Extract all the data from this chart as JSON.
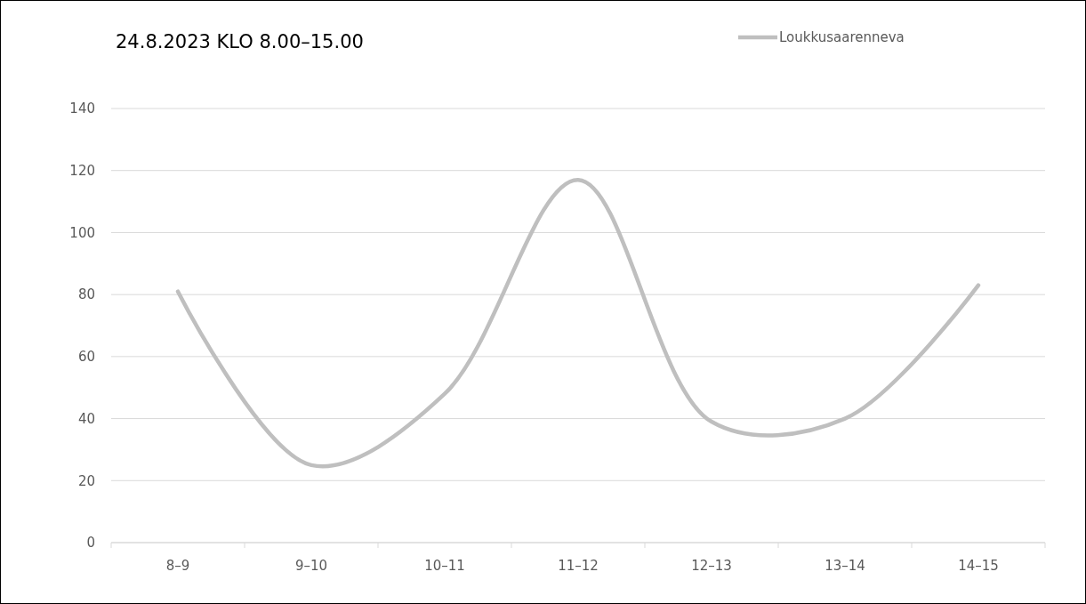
{
  "chart_data": {
    "type": "line",
    "title": "24.8.2023 KLO 8.00–15.00",
    "categories": [
      "8–9",
      "9–10",
      "10–11",
      "11–12",
      "12–13",
      "13–14",
      "14–15"
    ],
    "series": [
      {
        "name": "Loukkusaarenneva",
        "color": "#bfbfbf",
        "values": [
          81,
          25,
          48,
          117,
          39,
          40,
          83
        ]
      }
    ],
    "ylim": [
      0,
      140
    ],
    "yticks": [
      0,
      20,
      40,
      60,
      80,
      100,
      120,
      140
    ],
    "grid": "y",
    "legend": "top right",
    "marker": "none",
    "line_style": "solid"
  }
}
